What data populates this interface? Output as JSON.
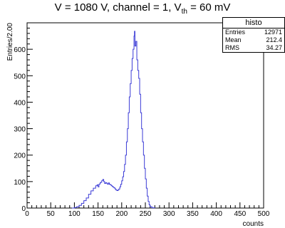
{
  "chart_data": {
    "type": "histogram",
    "title_parts": [
      "V = 1080 V, channel = 1, V",
      "th",
      " = 60 mV"
    ],
    "xlabel": "counts",
    "ylabel": "Entries/2.00",
    "xlim": [
      0,
      500
    ],
    "ylim": [
      0,
      700
    ],
    "x_ticks": [
      0,
      50,
      100,
      150,
      200,
      250,
      300,
      350,
      400,
      450,
      500
    ],
    "y_ticks": [
      0,
      100,
      200,
      300,
      400,
      500,
      600
    ],
    "y_tick_labels": [
      "0",
      "100",
      "200",
      "300",
      "400",
      "500",
      "600"
    ],
    "bin_width": 2,
    "line_color": "#3b3bd6",
    "points": [
      [
        95,
        0
      ],
      [
        100,
        2
      ],
      [
        105,
        5
      ],
      [
        110,
        10
      ],
      [
        115,
        18
      ],
      [
        120,
        28
      ],
      [
        125,
        38
      ],
      [
        130,
        52
      ],
      [
        135,
        65
      ],
      [
        140,
        75
      ],
      [
        145,
        84
      ],
      [
        148,
        88
      ],
      [
        150,
        80
      ],
      [
        152,
        90
      ],
      [
        154,
        95
      ],
      [
        156,
        98
      ],
      [
        158,
        104
      ],
      [
        160,
        108
      ],
      [
        162,
        100
      ],
      [
        164,
        93
      ],
      [
        166,
        96
      ],
      [
        168,
        94
      ],
      [
        170,
        90
      ],
      [
        172,
        95
      ],
      [
        174,
        90
      ],
      [
        176,
        88
      ],
      [
        178,
        84
      ],
      [
        180,
        82
      ],
      [
        182,
        78
      ],
      [
        184,
        76
      ],
      [
        186,
        72
      ],
      [
        188,
        68
      ],
      [
        190,
        66
      ],
      [
        192,
        68
      ],
      [
        194,
        72
      ],
      [
        196,
        80
      ],
      [
        198,
        90
      ],
      [
        200,
        103
      ],
      [
        202,
        118
      ],
      [
        204,
        138
      ],
      [
        206,
        165
      ],
      [
        208,
        200
      ],
      [
        210,
        250
      ],
      [
        212,
        300
      ],
      [
        214,
        360
      ],
      [
        216,
        420
      ],
      [
        218,
        470
      ],
      [
        220,
        520
      ],
      [
        222,
        565
      ],
      [
        224,
        600
      ],
      [
        226,
        650
      ],
      [
        227,
        668
      ],
      [
        228,
        612
      ],
      [
        230,
        630
      ],
      [
        232,
        560
      ],
      [
        234,
        520
      ],
      [
        236,
        490
      ],
      [
        238,
        430
      ],
      [
        240,
        360
      ],
      [
        242,
        300
      ],
      [
        244,
        250
      ],
      [
        246,
        200
      ],
      [
        248,
        150
      ],
      [
        250,
        110
      ],
      [
        252,
        75
      ],
      [
        254,
        45
      ],
      [
        256,
        25
      ],
      [
        258,
        12
      ],
      [
        260,
        5
      ],
      [
        264,
        1
      ],
      [
        270,
        0
      ]
    ],
    "stats": {
      "name": "histo",
      "entries_label": "Entries",
      "entries": "12971",
      "mean_label": "Mean",
      "mean": "212.4",
      "rms_label": "RMS",
      "rms": "34.27"
    }
  }
}
